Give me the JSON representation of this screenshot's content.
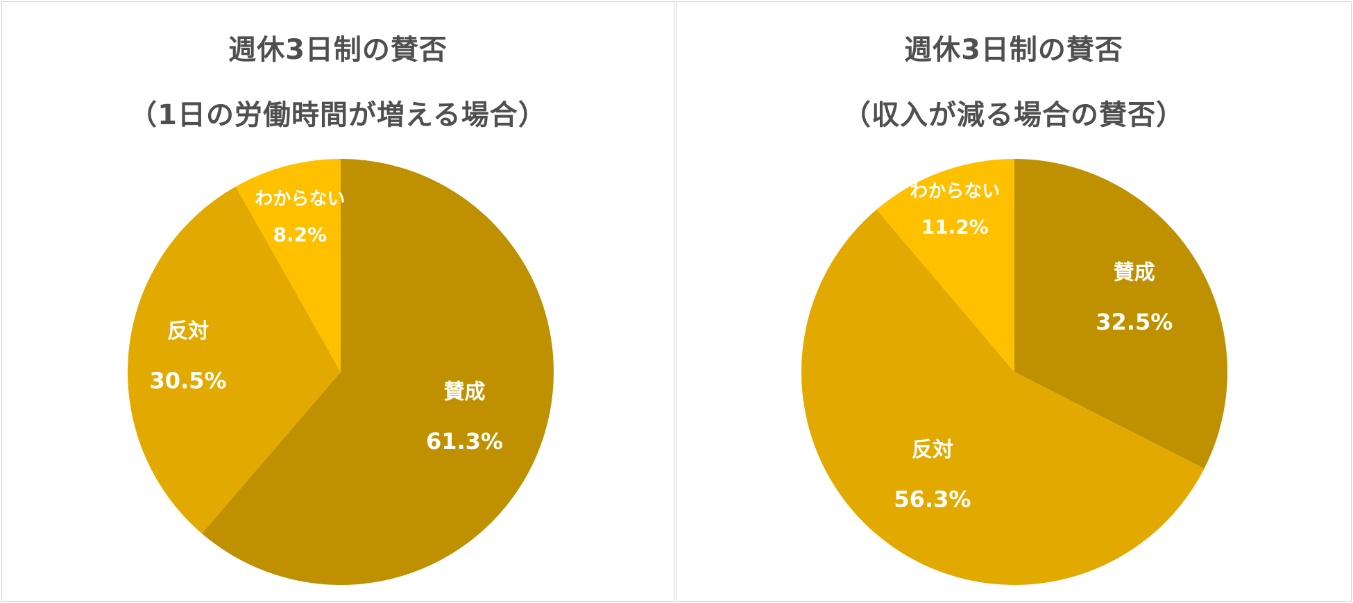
{
  "chart_data": [
    {
      "type": "pie",
      "title": "週休3日制の賛否",
      "subtitle": "（1日の労働時間が増える場合）",
      "categories": [
        "賛成",
        "反対",
        "わからない"
      ],
      "values": [
        61.3,
        30.5,
        8.2
      ],
      "value_labels": [
        "61.3%",
        "30.5%",
        "8.2%"
      ],
      "colors": [
        "#BF9000",
        "#E2AA00",
        "#FFC000"
      ],
      "legend": "none"
    },
    {
      "type": "pie",
      "title": "週休3日制の賛否",
      "subtitle": "（収入が減る場合の賛否）",
      "categories": [
        "賛成",
        "反対",
        "わからない"
      ],
      "values": [
        32.5,
        56.3,
        11.2
      ],
      "value_labels": [
        "32.5%",
        "56.3%",
        "11.2%"
      ],
      "colors": [
        "#BF9000",
        "#E2AA00",
        "#FFC000"
      ],
      "legend": "none"
    }
  ]
}
